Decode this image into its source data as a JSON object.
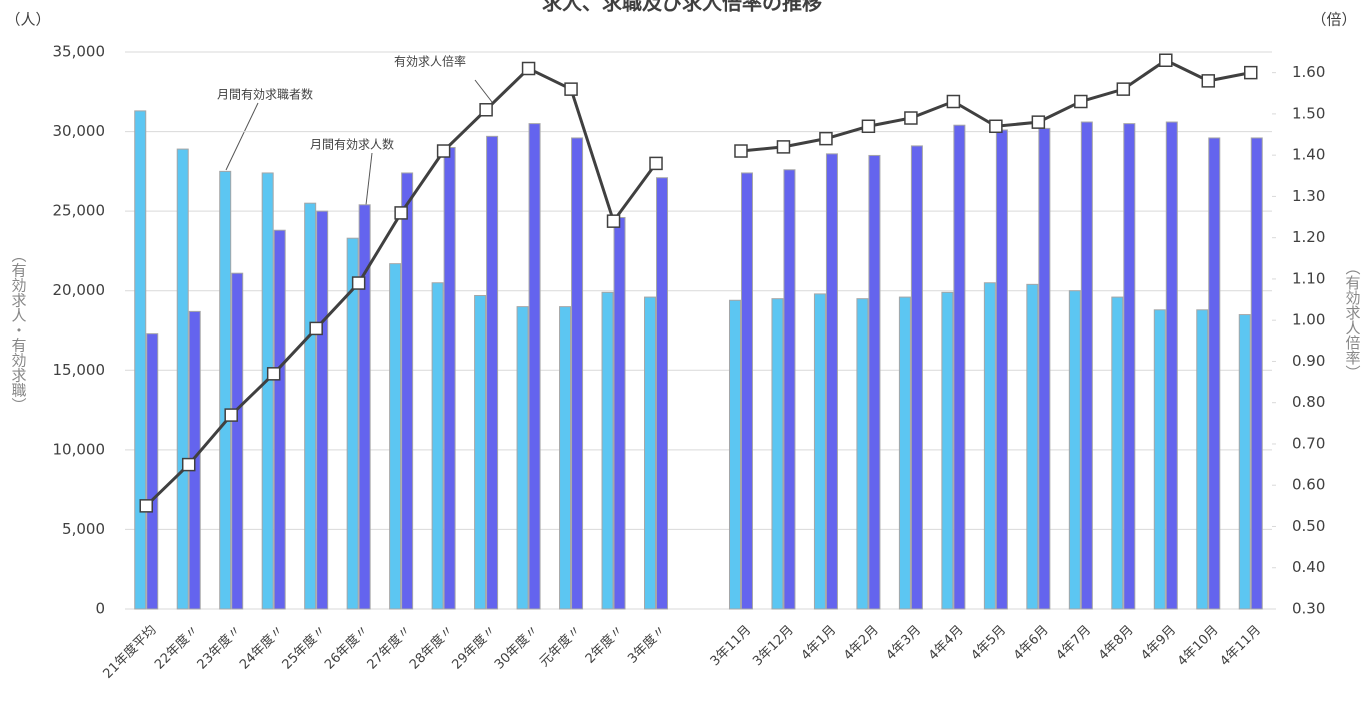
{
  "chart_data": {
    "type": "bar_line",
    "title": "求人、求職及び求人倍率の推移",
    "y_unit": "（人）",
    "y2_unit": "（倍）",
    "ylabel": "（有効求人・有効求職）",
    "y2label": "（有効求人倍率）",
    "categories": [
      "21年度平均",
      "22年度〃",
      "23年度〃",
      "24年度〃",
      "25年度〃",
      "26年度〃",
      "27年度〃",
      "28年度〃",
      "29年度〃",
      "30年度〃",
      "元年度〃",
      "2年度〃",
      "3年度〃",
      null,
      "3年11月",
      "3年12月",
      "4年1月",
      "4年2月",
      "4年3月",
      "4年4月",
      "4年5月",
      "4年6月",
      "4年7月",
      "4年8月",
      "4年9月",
      "4年10月",
      "4年11月"
    ],
    "series": [
      {
        "name": "月間有効求職者数",
        "color": "#5cc6f2",
        "values": [
          31300,
          28900,
          27500,
          27400,
          25500,
          23300,
          21700,
          20500,
          19700,
          19000,
          19000,
          19900,
          19600,
          null,
          19400,
          19500,
          19800,
          19500,
          19600,
          19900,
          20500,
          20400,
          20000,
          19600,
          18800,
          18800,
          18500
        ]
      },
      {
        "name": "月間有効求人数",
        "color": "#6464ee",
        "values": [
          17300,
          18700,
          21100,
          23800,
          25000,
          25400,
          27400,
          29000,
          29700,
          30500,
          29600,
          24600,
          27100,
          null,
          27400,
          27600,
          28600,
          28500,
          29100,
          30400,
          30100,
          30200,
          30600,
          30500,
          30600,
          29600,
          29600
        ]
      },
      {
        "name": "有効求人倍率",
        "color": "#404040",
        "axis": "y2",
        "values": [
          0.55,
          0.65,
          0.77,
          0.87,
          0.98,
          1.09,
          1.26,
          1.41,
          1.51,
          1.61,
          1.56,
          1.24,
          1.38,
          null,
          1.41,
          1.42,
          1.44,
          1.47,
          1.49,
          1.53,
          1.47,
          1.48,
          1.53,
          1.56,
          1.63,
          1.58,
          1.6
        ]
      }
    ],
    "ylim": [
      0,
      35000
    ],
    "yticks": [
      0,
      {
        "value": 5000,
        "label": "5,000"
      },
      {
        "value": 10000,
        "label": "10,000"
      },
      {
        "value": 15000,
        "label": "15,000"
      },
      {
        "value": 20000,
        "label": "20,000"
      },
      {
        "value": 25000,
        "label": "25,000"
      },
      {
        "value": 30000,
        "label": "30,000"
      },
      {
        "value": 35000,
        "label": "35,000"
      }
    ],
    "y2lim": [
      0.3,
      1.65
    ],
    "y2ticks": [
      {
        "value": 0.3,
        "label": "0.30"
      },
      {
        "value": 0.4,
        "label": "0.40"
      },
      {
        "value": 0.5,
        "label": "0.50"
      },
      {
        "value": 0.6,
        "label": "0.60"
      },
      {
        "value": 0.7,
        "label": "0.70"
      },
      {
        "value": 0.8,
        "label": "0.80"
      },
      {
        "value": 0.9,
        "label": "0.90"
      },
      {
        "value": 1.0,
        "label": "1.00"
      },
      {
        "value": 1.1,
        "label": "1.10"
      },
      {
        "value": 1.2,
        "label": "1.20"
      },
      {
        "value": 1.3,
        "label": "1.30"
      },
      {
        "value": 1.4,
        "label": "1.40"
      },
      {
        "value": 1.5,
        "label": "1.50"
      },
      {
        "value": 1.6,
        "label": "1.60"
      }
    ],
    "grid": true
  }
}
